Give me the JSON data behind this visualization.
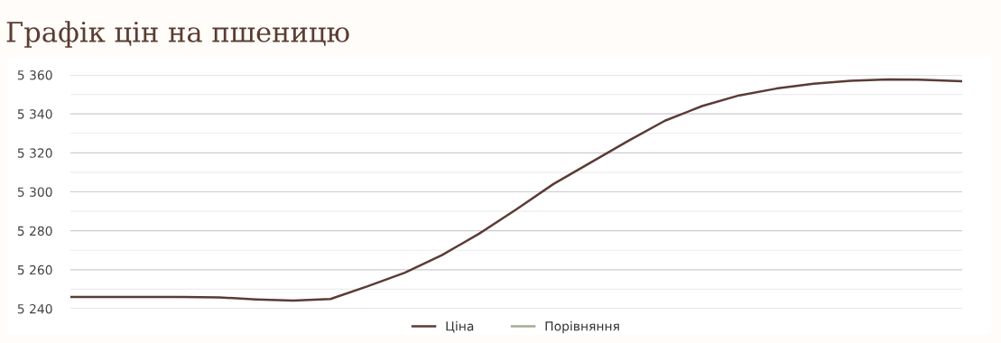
{
  "chart_data": {
    "type": "line",
    "title": "Графік цін на пшеницю",
    "categories": [
      null,
      null,
      null,
      null,
      null,
      null,
      null,
      null,
      null,
      null,
      null,
      null,
      null,
      null,
      null,
      null,
      null,
      null,
      null,
      null,
      null,
      null,
      null,
      null,
      null
    ],
    "series": [
      {
        "name": "Ціна",
        "color": "#5b3b36",
        "values": [
          5246,
          5246,
          5246,
          5246,
          5245.8,
          5244.8,
          5244.2,
          5245,
          5251.5,
          5258.5,
          5267.5,
          5278.5,
          5291,
          5304,
          5315,
          5326,
          5336.5,
          5344,
          5349.5,
          5353,
          5355.5,
          5357,
          5357.7,
          5357.5,
          5356.8
        ]
      },
      {
        "name": "Порівняння",
        "color": "#a4ab95",
        "values": [
          null,
          null,
          null,
          null,
          null,
          null,
          null,
          null,
          null,
          null,
          null,
          null,
          null,
          null,
          null,
          null,
          null,
          null,
          null,
          null,
          null,
          null,
          null,
          null,
          null
        ]
      }
    ],
    "ylim": [
      5240,
      5360
    ],
    "yticks": [
      {
        "value": 5240,
        "label": "5 240"
      },
      {
        "value": 5250,
        "label": null
      },
      {
        "value": 5260,
        "label": "5 260"
      },
      {
        "value": 5270,
        "label": null
      },
      {
        "value": 5280,
        "label": "5 280"
      },
      {
        "value": 5290,
        "label": null
      },
      {
        "value": 5300,
        "label": "5 300"
      },
      {
        "value": 5310,
        "label": null
      },
      {
        "value": 5320,
        "label": "5 320"
      },
      {
        "value": 5330,
        "label": null
      },
      {
        "value": 5340,
        "label": "5 340"
      },
      {
        "value": 5350,
        "label": null
      },
      {
        "value": 5360,
        "label": "5 360"
      }
    ],
    "grid": "y",
    "legend": "bottom",
    "marker": "none",
    "line_style": "solid",
    "tick_labels": "y"
  }
}
